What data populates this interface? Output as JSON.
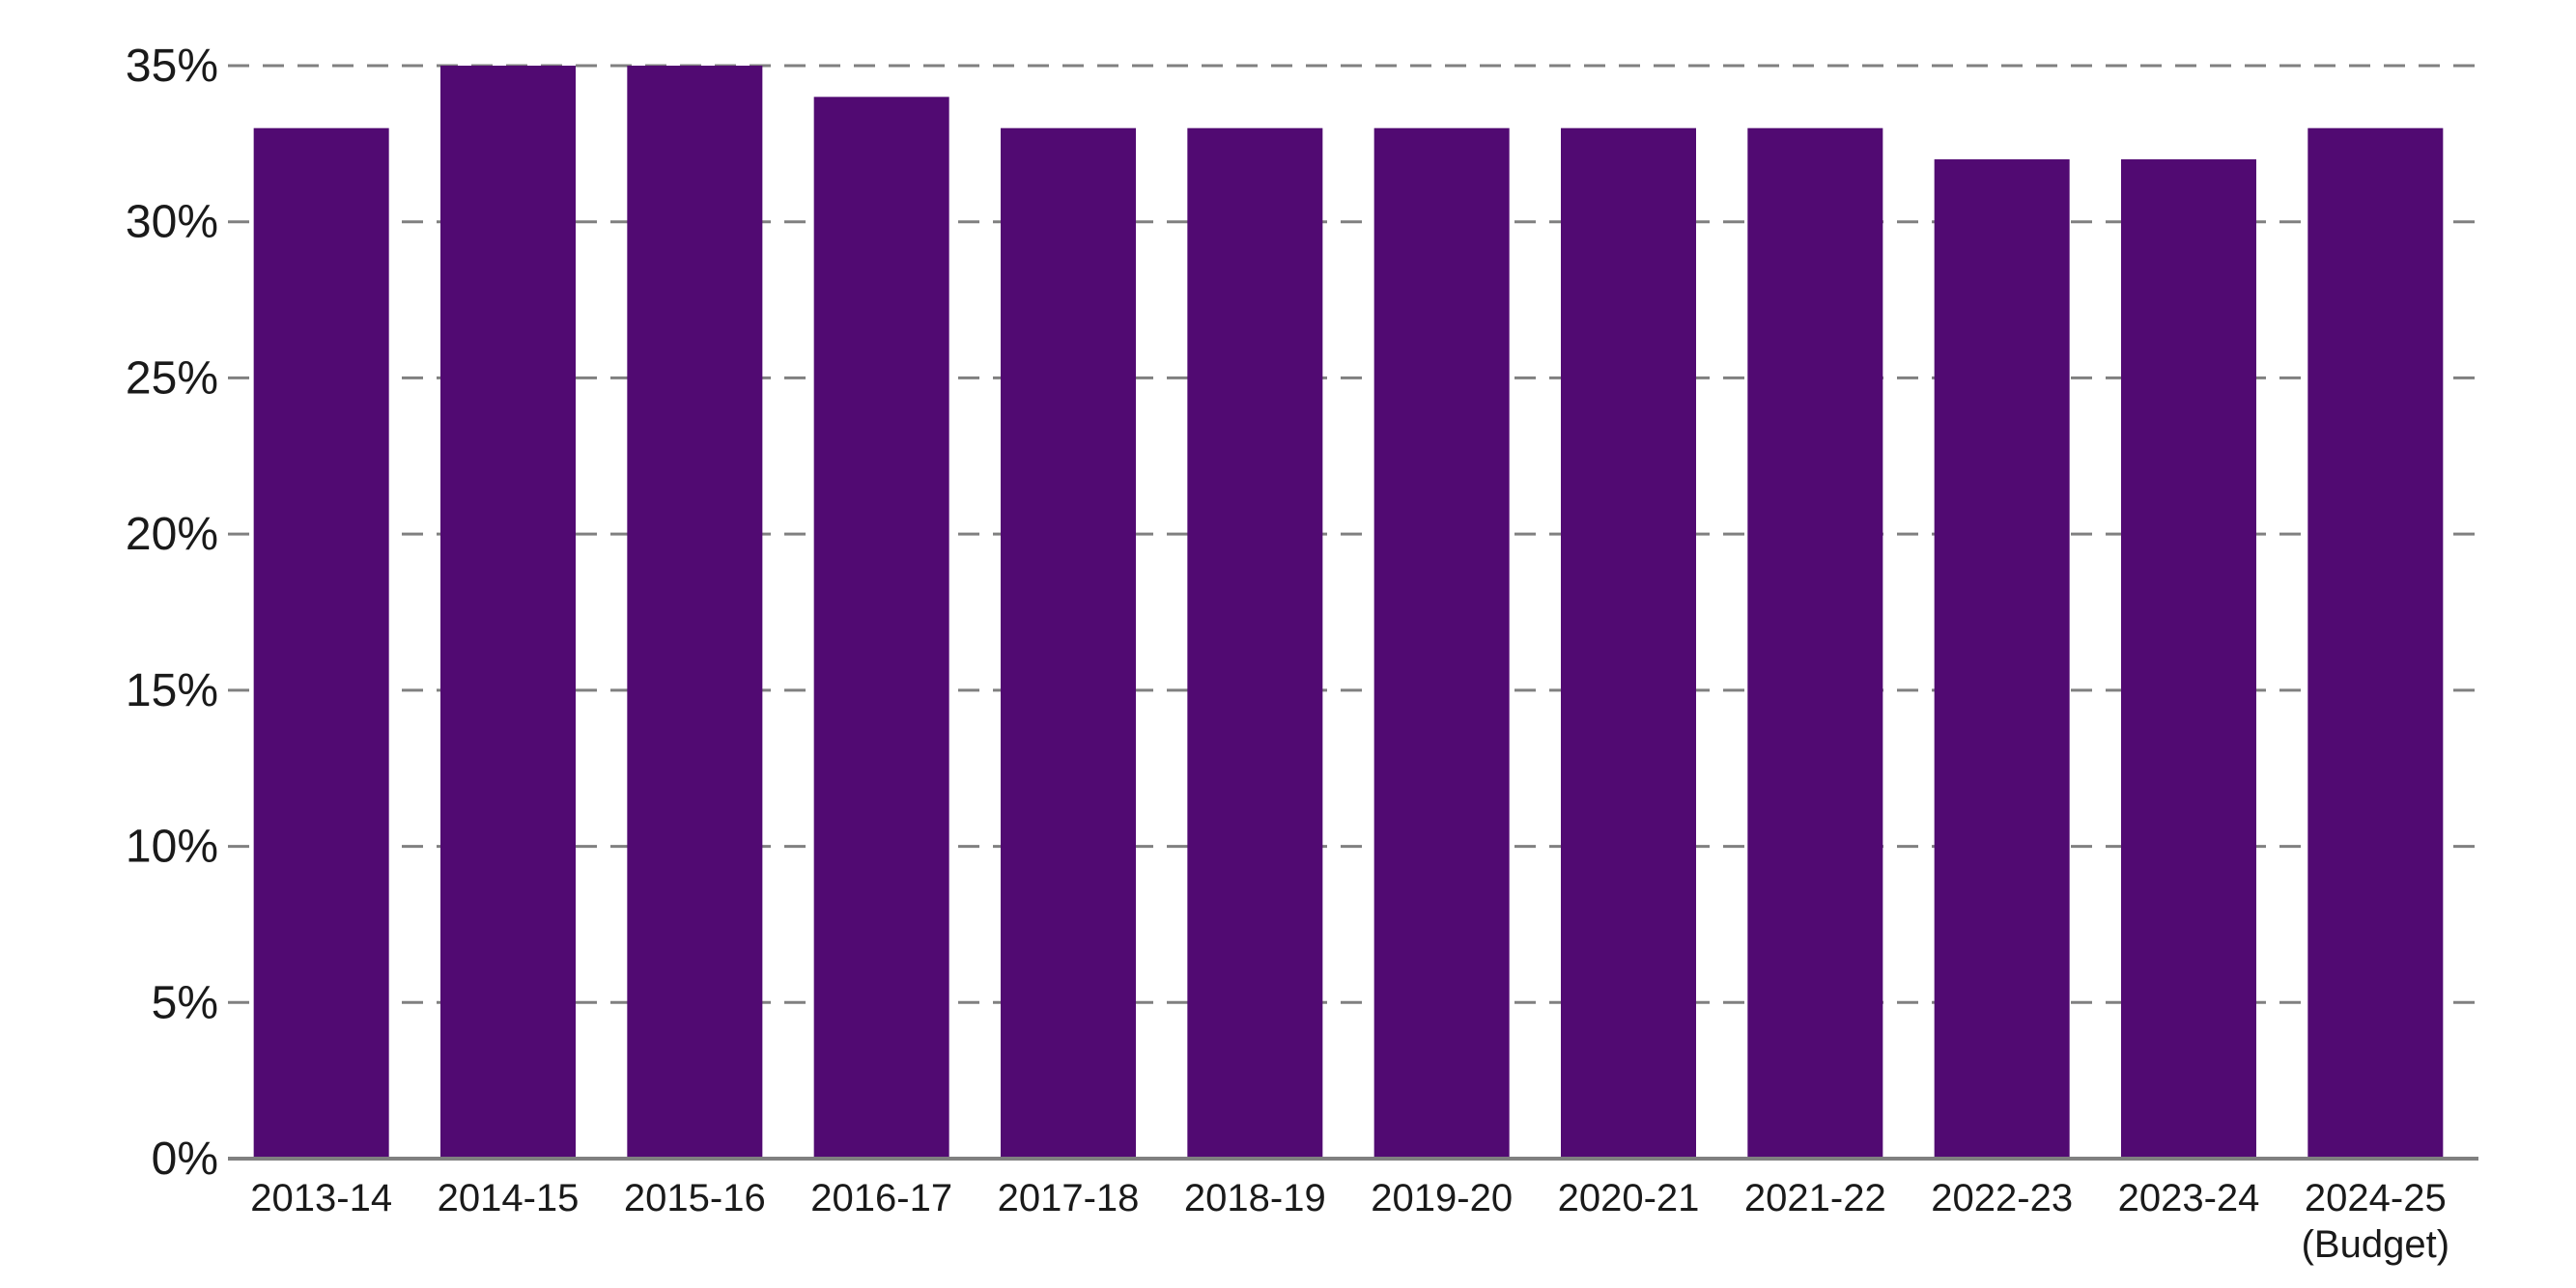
{
  "chart_data": {
    "type": "bar",
    "title": "",
    "xlabel": "",
    "ylabel": "",
    "categories": [
      "2013-14",
      "2014-15",
      "2015-16",
      "2016-17",
      "2017-18",
      "2018-19",
      "2019-20",
      "2020-21",
      "2021-22",
      "2022-23",
      "2023-24",
      "2024-25\n(Budget)"
    ],
    "values": [
      33,
      35,
      35,
      34,
      33,
      33,
      33,
      33,
      33,
      32,
      32,
      33
    ],
    "ylim": [
      0,
      35
    ],
    "yticks": [
      0,
      5,
      10,
      15,
      20,
      25,
      30,
      35
    ],
    "ytick_suffix": "%",
    "grid": true,
    "legend": "none",
    "bar_color": "#510A72",
    "grid_color": "#808080",
    "axis_color": "#808080",
    "text_color": "#1a1a1a"
  }
}
